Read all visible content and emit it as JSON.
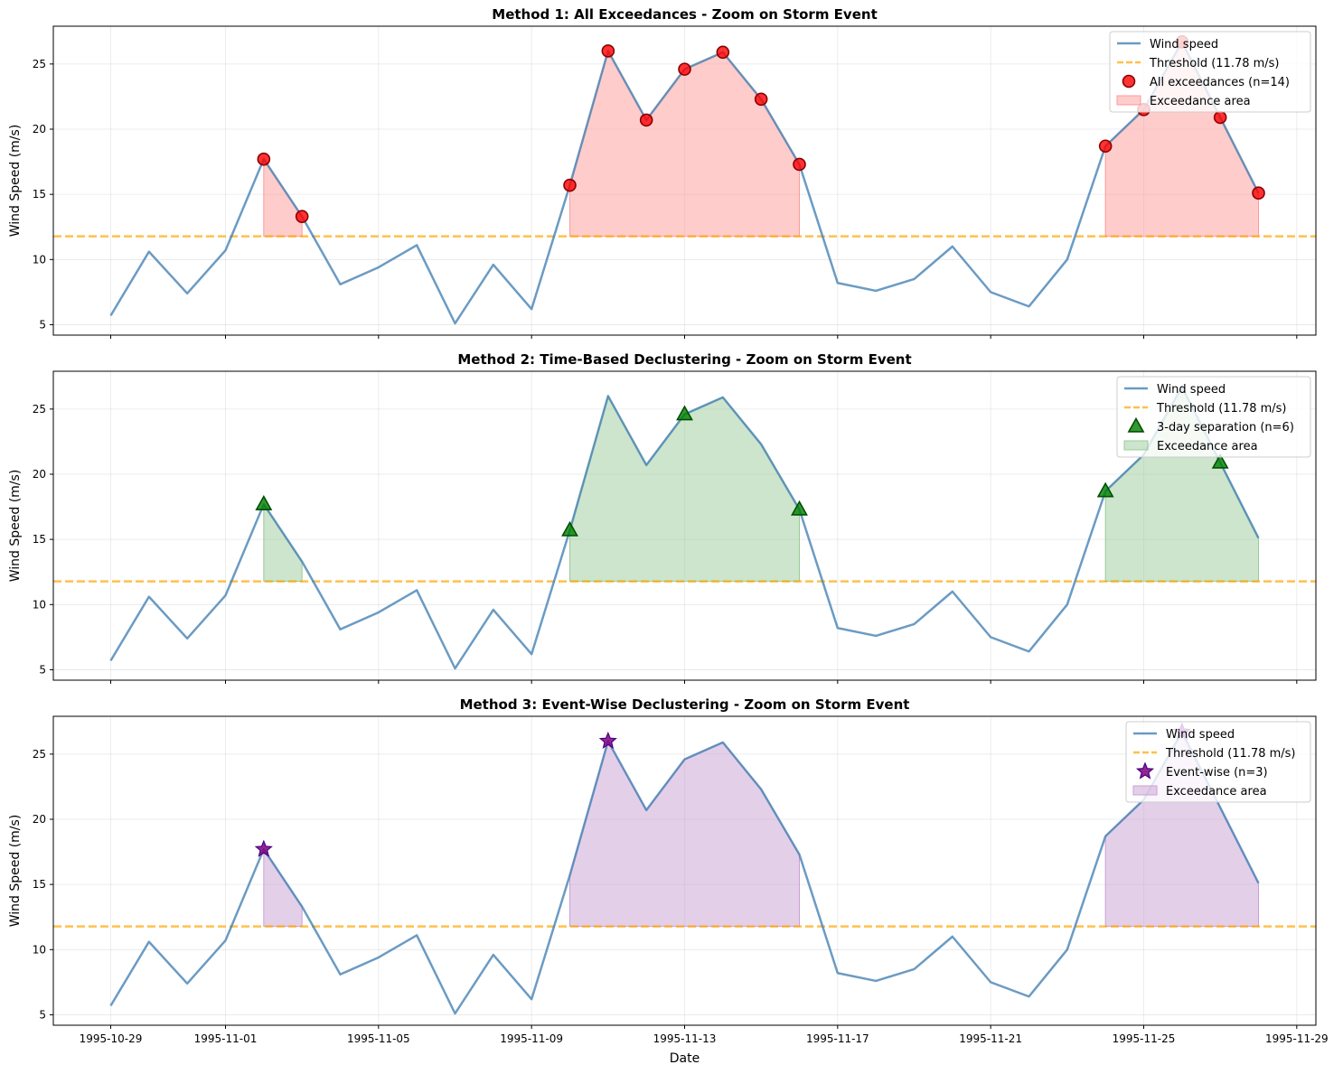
{
  "chart_data": {
    "type": "line",
    "shared": {
      "x": [
        "1995-10-29",
        "1995-10-30",
        "1995-10-31",
        "1995-11-01",
        "1995-11-02",
        "1995-11-03",
        "1995-11-04",
        "1995-11-05",
        "1995-11-06",
        "1995-11-07",
        "1995-11-08",
        "1995-11-09",
        "1995-11-10",
        "1995-11-11",
        "1995-11-12",
        "1995-11-13",
        "1995-11-14",
        "1995-11-15",
        "1995-11-16",
        "1995-11-17",
        "1995-11-18",
        "1995-11-19",
        "1995-11-20",
        "1995-11-21",
        "1995-11-22",
        "1995-11-23",
        "1995-11-24",
        "1995-11-25",
        "1995-11-26",
        "1995-11-27",
        "1995-11-28"
      ],
      "wind_speed": [
        5.7,
        10.6,
        7.4,
        10.7,
        17.7,
        13.3,
        8.1,
        9.4,
        11.1,
        5.1,
        9.6,
        6.2,
        15.7,
        26.0,
        20.7,
        24.6,
        25.9,
        22.3,
        17.3,
        8.2,
        7.6,
        8.5,
        11.0,
        7.5,
        6.4,
        10.0,
        18.7,
        21.5,
        26.7,
        20.9,
        15.1
      ],
      "threshold": 11.78,
      "exceedance_periods": [
        [
          "1995-11-02",
          "1995-11-03"
        ],
        [
          "1995-11-10",
          "1995-11-16"
        ],
        [
          "1995-11-24",
          "1995-11-28"
        ]
      ],
      "xlabel": "Date",
      "ylabel": "Wind Speed (m/s)",
      "ylim": [
        4.2,
        27.9
      ],
      "xlim": [
        "1995-10-27.5",
        "1995-11-29.5"
      ],
      "xticks": [
        "1995-10-29",
        "1995-11-01",
        "1995-11-05",
        "1995-11-09",
        "1995-11-13",
        "1995-11-17",
        "1995-11-21",
        "1995-11-25",
        "1995-11-29"
      ],
      "yticks": [
        5,
        10,
        15,
        20,
        25
      ],
      "grid": true,
      "legend_position": "top-right",
      "colors": {
        "line": "#4682b4",
        "threshold": "#ffa500"
      }
    },
    "panels": [
      {
        "title": "Method 1: All Exceedances - Zoom on Storm Event",
        "marker": "circle",
        "color": "#ff0000",
        "edge_color": "#8b0000",
        "fill_color": "#ff9999",
        "legend": [
          "Wind speed",
          "Threshold (11.78 m/s)",
          "All exceedances (n=14)",
          "Exceedance area"
        ],
        "points": [
          {
            "x": "1995-11-02",
            "y": 17.7
          },
          {
            "x": "1995-11-03",
            "y": 13.3
          },
          {
            "x": "1995-11-10",
            "y": 15.7
          },
          {
            "x": "1995-11-11",
            "y": 26.0
          },
          {
            "x": "1995-11-12",
            "y": 20.7
          },
          {
            "x": "1995-11-13",
            "y": 24.6
          },
          {
            "x": "1995-11-14",
            "y": 25.9
          },
          {
            "x": "1995-11-15",
            "y": 22.3
          },
          {
            "x": "1995-11-16",
            "y": 17.3
          },
          {
            "x": "1995-11-24",
            "y": 18.7
          },
          {
            "x": "1995-11-25",
            "y": 21.5
          },
          {
            "x": "1995-11-26",
            "y": 26.7
          },
          {
            "x": "1995-11-27",
            "y": 20.9
          },
          {
            "x": "1995-11-28",
            "y": 15.1
          }
        ],
        "show_xtick_labels": false
      },
      {
        "title": "Method 2: Time-Based Declustering - Zoom on Storm Event",
        "marker": "triangle",
        "color": "#008000",
        "edge_color": "#005000",
        "fill_color": "#99cc99",
        "legend": [
          "Wind speed",
          "Threshold (11.78 m/s)",
          "3-day separation (n=6)",
          "Exceedance area"
        ],
        "points": [
          {
            "x": "1995-11-02",
            "y": 17.7
          },
          {
            "x": "1995-11-10",
            "y": 15.7
          },
          {
            "x": "1995-11-13",
            "y": 24.6
          },
          {
            "x": "1995-11-16",
            "y": 17.3
          },
          {
            "x": "1995-11-24",
            "y": 18.7
          },
          {
            "x": "1995-11-27",
            "y": 20.9
          }
        ],
        "show_xtick_labels": false
      },
      {
        "title": "Method 3: Event-Wise Declustering - Zoom on Storm Event",
        "marker": "star",
        "color": "#800080",
        "edge_color": "#4b0082",
        "fill_color": "#c9a0d4",
        "legend": [
          "Wind speed",
          "Threshold (11.78 m/s)",
          "Event-wise (n=3)",
          "Exceedance area"
        ],
        "points": [
          {
            "x": "1995-11-02",
            "y": 17.7
          },
          {
            "x": "1995-11-11",
            "y": 26.0
          },
          {
            "x": "1995-11-26",
            "y": 26.7
          }
        ],
        "show_xtick_labels": true
      }
    ]
  }
}
